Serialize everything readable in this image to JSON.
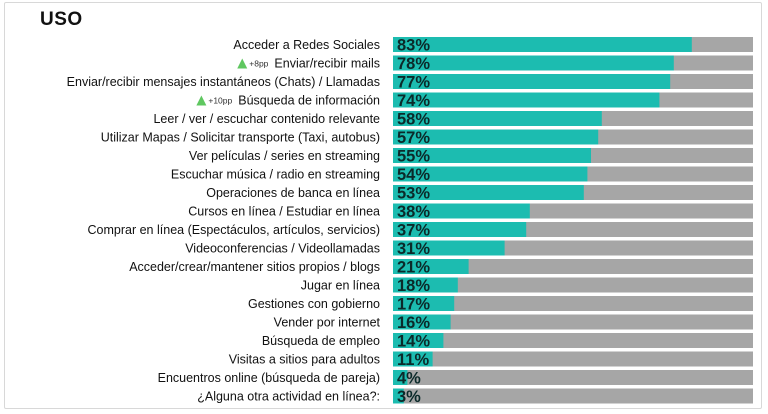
{
  "chart_data": {
    "type": "bar",
    "orientation": "horizontal",
    "title": "USO",
    "xlim": [
      0,
      100
    ],
    "value_suffix": "%",
    "colors": {
      "value": "#1cbcb0",
      "remainder": "#a6a6a6",
      "arrow": "#5fc760"
    },
    "categories": [
      "Acceder a Redes Sociales",
      "Enviar/recibir mails",
      "Enviar/recibir mensajes instantáneos (Chats) / Llamadas",
      "Búsqueda de información",
      "Leer / ver / escuchar contenido relevante",
      "Utilizar Mapas / Solicitar transporte (Taxi, autobus)",
      "Ver películas / series en streaming",
      "Escuchar música / radio en streaming",
      "Operaciones de banca en línea",
      "Cursos en línea / Estudiar en línea",
      "Comprar en línea (Espectáculos, artículos, servicios)",
      "Videoconferencias / Videollamadas",
      "Acceder/crear/mantener sitios propios / blogs",
      "Jugar en línea",
      "Gestiones con gobierno",
      "Vender por internet",
      "Búsqueda de empleo",
      "Visitas a sitios para adultos",
      "Encuentros online (búsqueda de pareja)",
      "¿Alguna otra actividad en línea?:"
    ],
    "values": [
      83,
      78,
      77,
      74,
      58,
      57,
      55,
      54,
      53,
      38,
      37,
      31,
      21,
      18,
      17,
      16,
      14,
      11,
      4,
      3
    ],
    "annotations": [
      {
        "category_index": 1,
        "text": "+8pp",
        "icon": "up-triangle-icon"
      },
      {
        "category_index": 3,
        "text": "+10pp",
        "icon": "up-triangle-icon"
      }
    ]
  }
}
